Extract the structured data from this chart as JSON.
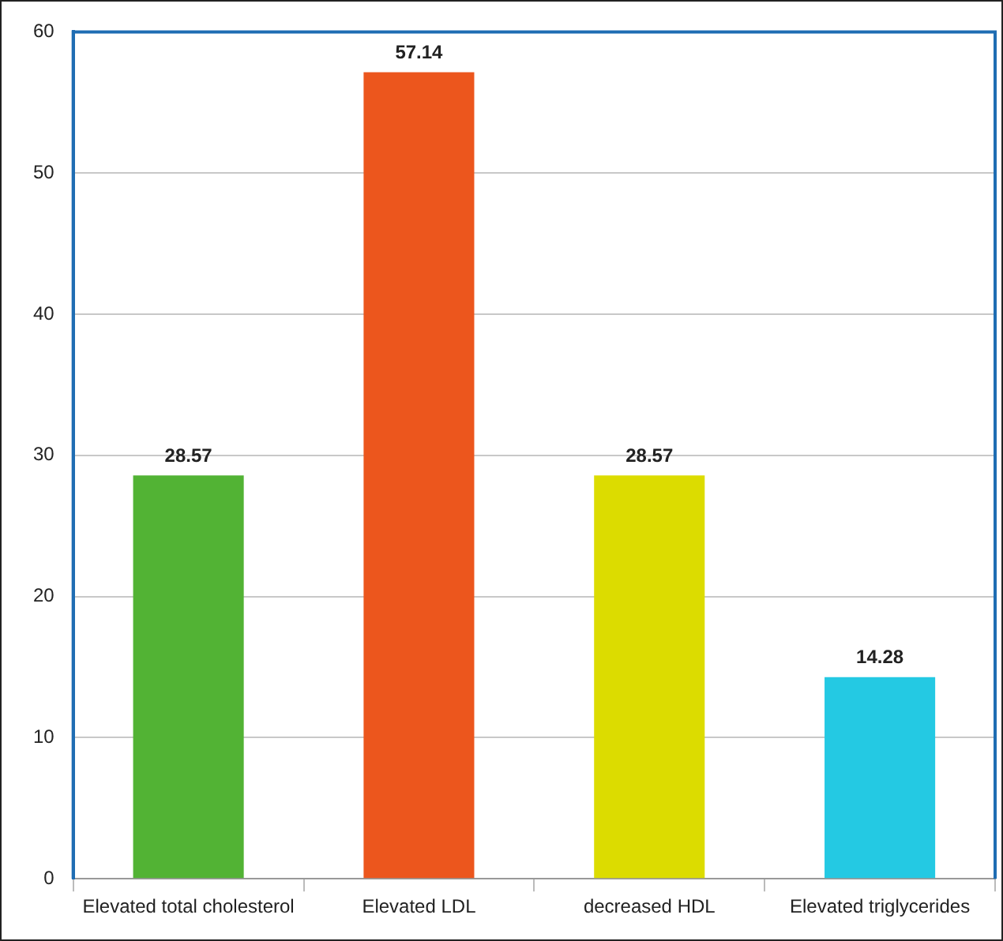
{
  "chart_data": {
    "type": "bar",
    "categories": [
      "Elevated total cholesterol",
      "Elevated LDL",
      "decreased HDL",
      "Elevated triglycerides"
    ],
    "values": [
      28.57,
      57.14,
      28.57,
      14.28
    ],
    "colors": [
      "#52b334",
      "#ec561d",
      "#dcdc00",
      "#24c9e3"
    ],
    "ylim": [
      0,
      60
    ],
    "yticks": [
      0,
      10,
      20,
      30,
      40,
      50,
      60
    ],
    "grid": "y",
    "data_labels": true,
    "legend": false
  }
}
